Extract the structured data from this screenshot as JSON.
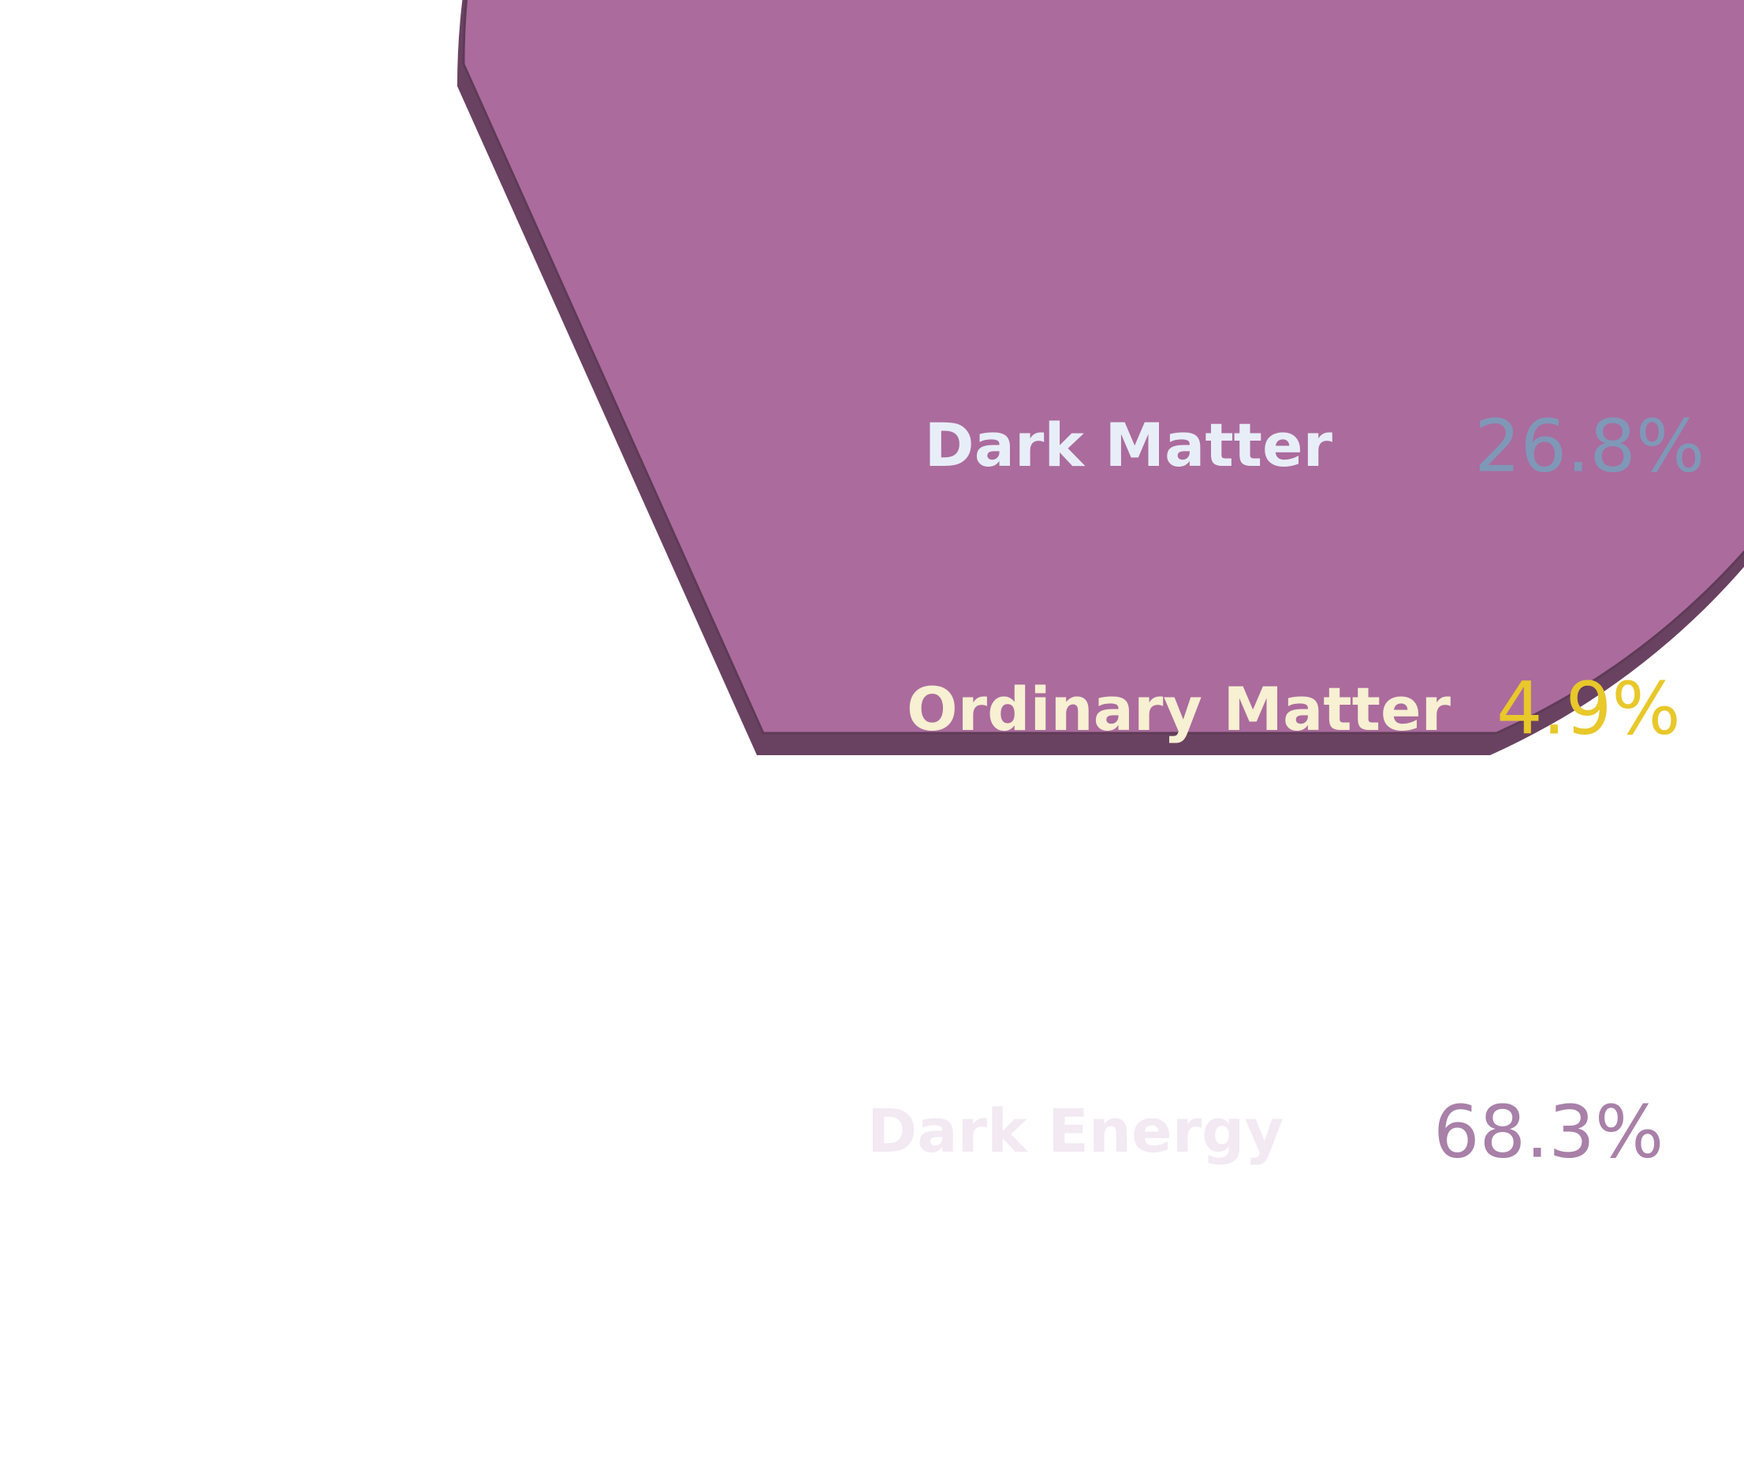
{
  "chart_data": {
    "type": "pie",
    "title": "",
    "slices": [
      {
        "label": "Dark Matter",
        "value": 26.8,
        "value_label": "26.8%",
        "color": "#1e6db3",
        "label_color": "#e8eef8",
        "value_color": "#7f98b8"
      },
      {
        "label": "Ordinary Matter",
        "value": 4.9,
        "value_label": "4.9%",
        "color": "#eec716",
        "label_color": "#f7f0d2",
        "value_color": "#e8c82a"
      },
      {
        "label": "Dark Energy",
        "value": 68.3,
        "value_label": "68.3%",
        "color": "#ab6b9d",
        "label_color": "#f2e9f2",
        "value_color": "#a880a8"
      }
    ],
    "legend": "none",
    "style": "3d-pie"
  }
}
